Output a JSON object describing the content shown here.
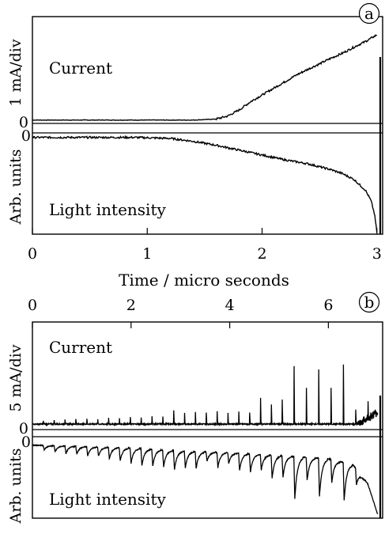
{
  "chart_data": [
    {
      "type": "line",
      "panel_label": "a",
      "xlabel": "Time / micro seconds",
      "x_ticks": [
        "0",
        "1",
        "2",
        "3"
      ],
      "xlim": [
        0,
        3.05
      ],
      "upper": {
        "inner_label": "Current",
        "ylabel": "1 mA/div",
        "zero_label": "0",
        "ylim": [
          -0.1,
          3.0
        ],
        "series": [
          {
            "name": "Current",
            "x": [
              0,
              0.5,
              1.0,
              1.4,
              1.6,
              1.7,
              1.8,
              1.9,
              2.0,
              2.1,
              2.2,
              2.3,
              2.4,
              2.5,
              2.6,
              2.7,
              2.8,
              2.9,
              3.0,
              3.02
            ],
            "y": [
              0,
              0,
              0,
              0,
              0.03,
              0.12,
              0.3,
              0.55,
              0.75,
              0.95,
              1.15,
              1.35,
              1.52,
              1.68,
              1.85,
              2.0,
              2.18,
              2.35,
              2.55,
              2.6
            ]
          }
        ]
      },
      "lower": {
        "inner_label": "Light intensity",
        "ylabel": "Arb. units",
        "zero_label": "0",
        "ylim": [
          -1.0,
          0.02
        ],
        "series": [
          {
            "name": "Light intensity",
            "x": [
              0,
              0.3,
              0.6,
              0.9,
              1.2,
              1.4,
              1.6,
              1.8,
              2.0,
              2.2,
              2.4,
              2.6,
              2.7,
              2.8,
              2.9,
              2.95,
              2.98,
              3.0
            ],
            "y": [
              -0.01,
              -0.01,
              -0.01,
              -0.01,
              -0.02,
              -0.05,
              -0.09,
              -0.14,
              -0.19,
              -0.24,
              -0.28,
              -0.34,
              -0.38,
              -0.44,
              -0.55,
              -0.66,
              -0.8,
              -0.98
            ]
          }
        ]
      }
    },
    {
      "type": "line",
      "panel_label": "b",
      "x_ticks": [
        "0",
        "2",
        "4",
        "6"
      ],
      "xlim": [
        0,
        7.1
      ],
      "upper": {
        "inner_label": "Current",
        "ylabel": "5 mA/div",
        "zero_label": "0",
        "ylim": [
          -0.2,
          4.0
        ],
        "spikes": {
          "x": [
            0.22,
            0.44,
            0.66,
            0.88,
            1.1,
            1.32,
            1.54,
            1.76,
            1.98,
            2.2,
            2.42,
            2.64,
            2.86,
            3.08,
            3.3,
            3.52,
            3.74,
            3.96,
            4.18,
            4.4,
            4.62,
            4.84,
            5.06,
            5.3,
            5.55,
            5.8,
            6.05,
            6.3,
            6.55,
            6.8
          ],
          "height": [
            0.15,
            0.18,
            0.2,
            0.22,
            0.35,
            0.32,
            0.4,
            0.38,
            0.45,
            0.42,
            0.5,
            0.48,
            0.85,
            0.7,
            0.75,
            0.72,
            0.8,
            0.7,
            0.78,
            0.72,
            1.6,
            1.2,
            1.5,
            3.5,
            2.2,
            3.3,
            2.2,
            3.6,
            0.9,
            1.4
          ]
        }
      },
      "lower": {
        "inner_label": "Light intensity",
        "ylabel": "Arb. units",
        "zero_label": "0",
        "ylim": [
          -1.0,
          0.05
        ],
        "envelope": {
          "x": [
            0,
            1.0,
            2.0,
            3.0,
            4.0,
            5.0,
            6.0,
            6.5,
            6.8,
            7.0
          ],
          "y": [
            -0.04,
            -0.06,
            -0.08,
            -0.12,
            -0.14,
            -0.18,
            -0.22,
            -0.3,
            -0.55,
            -0.95
          ]
        },
        "dips": {
          "x": [
            0.22,
            0.44,
            0.66,
            0.88,
            1.1,
            1.32,
            1.54,
            1.76,
            1.98,
            2.2,
            2.42,
            2.64,
            2.86,
            3.08,
            3.3,
            3.52,
            3.74,
            3.96,
            4.18,
            4.4,
            4.62,
            4.84,
            5.06,
            5.3,
            5.55,
            5.8,
            6.05,
            6.3,
            6.55
          ],
          "depth": [
            0.06,
            0.08,
            0.1,
            0.1,
            0.12,
            0.12,
            0.15,
            0.17,
            0.2,
            0.22,
            0.22,
            0.22,
            0.25,
            0.22,
            0.22,
            0.12,
            0.2,
            0.14,
            0.22,
            0.24,
            0.2,
            0.3,
            0.28,
            0.55,
            0.3,
            0.5,
            0.3,
            0.5,
            0.2
          ]
        }
      }
    }
  ]
}
